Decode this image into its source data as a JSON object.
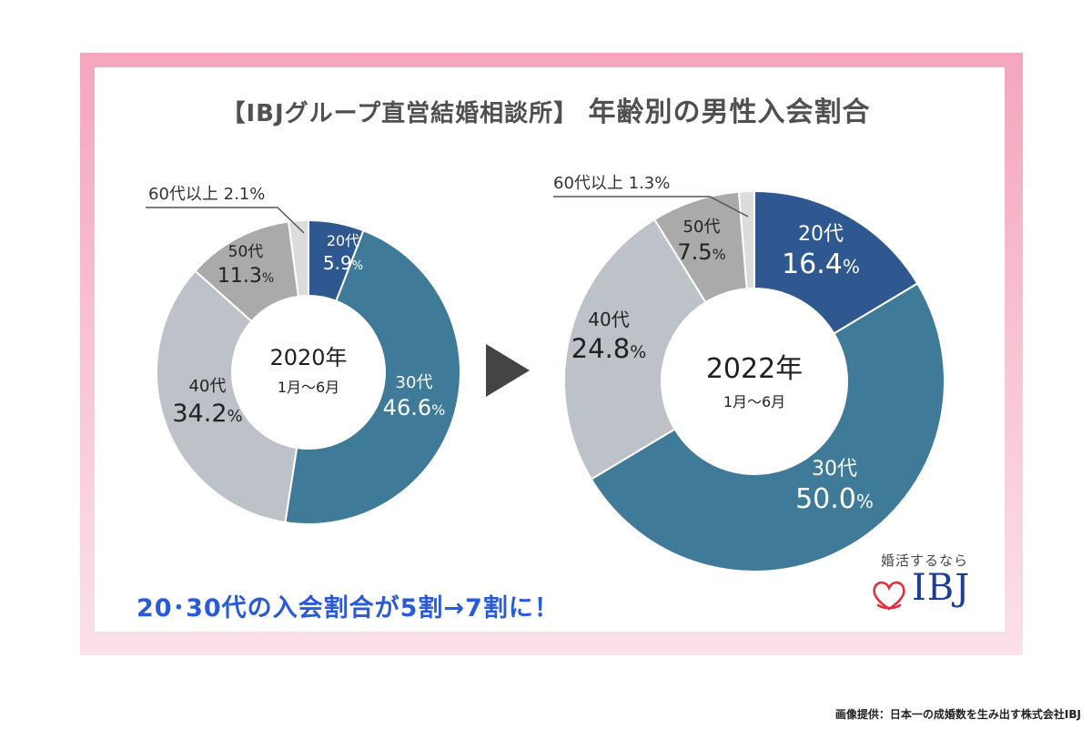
{
  "title": {
    "prefix": "【IBJグループ直営結婚相談所】",
    "main": "年齢別の男性入会割合"
  },
  "chart_data": [
    {
      "type": "pie",
      "center_label": "2020年",
      "center_sub": "1月～6月",
      "slices": [
        {
          "label": "20代",
          "value": 5.9,
          "display": "5.9",
          "color": "#2f5891"
        },
        {
          "label": "30代",
          "value": 46.6,
          "display": "46.6",
          "color": "#3f7b98"
        },
        {
          "label": "40代",
          "value": 34.2,
          "display": "34.2",
          "color": "#bcc2c8"
        },
        {
          "label": "50代",
          "value": 11.3,
          "display": "11.3",
          "color": "#aaaaaa"
        },
        {
          "label": "60代以上",
          "value": 2.1,
          "display": "2.1",
          "color": "#dcdcdc"
        }
      ]
    },
    {
      "type": "pie",
      "center_label": "2022年",
      "center_sub": "1月～6月",
      "slices": [
        {
          "label": "20代",
          "value": 16.4,
          "display": "16.4",
          "color": "#2f5891"
        },
        {
          "label": "30代",
          "value": 50.0,
          "display": "50.0",
          "color": "#3f7b98"
        },
        {
          "label": "40代",
          "value": 24.8,
          "display": "24.8",
          "color": "#bcc2c8"
        },
        {
          "label": "50代",
          "value": 7.5,
          "display": "7.5",
          "color": "#aaaaaa"
        },
        {
          "label": "60代以上",
          "value": 1.3,
          "display": "1.3",
          "color": "#dcdcdc"
        }
      ]
    }
  ],
  "callouts": {
    "left": "60代以上 2.1%",
    "right": "60代以上 1.3%"
  },
  "percent_sign": "%",
  "headline": "20･30代の入会割合が5割→7割に！",
  "brand": {
    "sub": "婚活するなら",
    "name": "IBJ"
  },
  "credit": "画像提供：日本一の成婚数を生み出す株式会社IBJ",
  "colors": {
    "frame_pink": "#f4a6bd",
    "headline_blue": "#2a5bd7",
    "brand_navy": "#1d3f93",
    "heart_red": "#e0303e"
  }
}
